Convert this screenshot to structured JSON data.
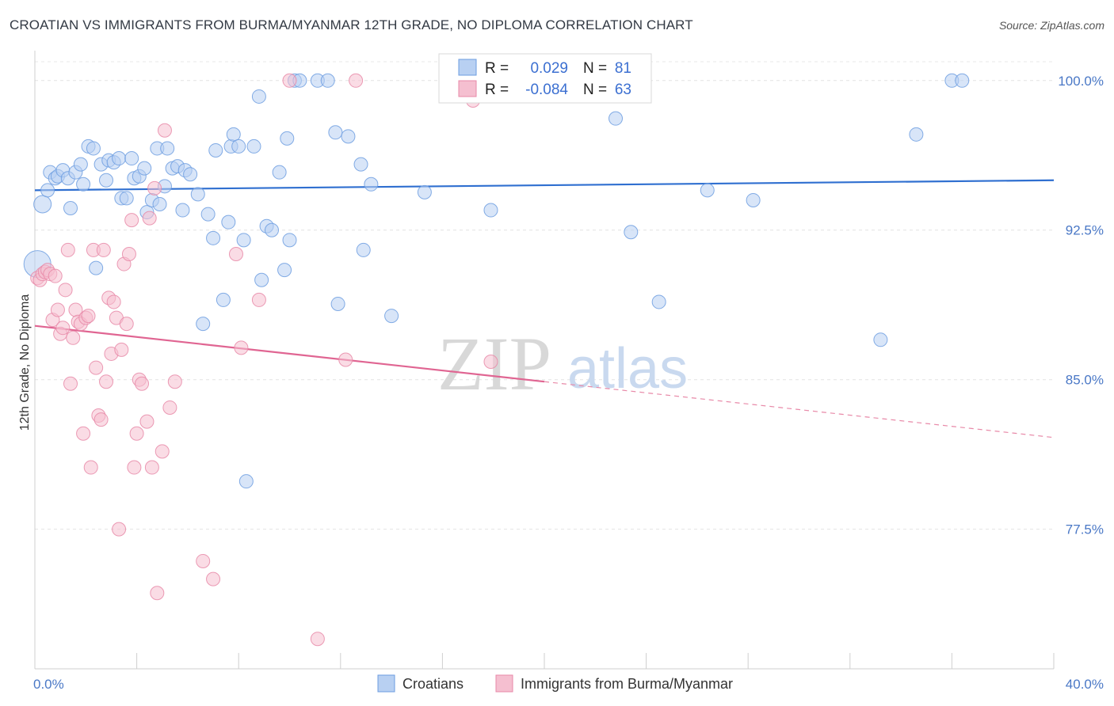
{
  "chart_data": {
    "type": "scatter",
    "title": "CROATIAN VS IMMIGRANTS FROM BURMA/MYANMAR 12TH GRADE, NO DIPLOMA CORRELATION CHART",
    "source": "Source: ZipAtlas.com",
    "xlabel": "",
    "ylabel": "12th Grade, No Diploma",
    "xlim": [
      0,
      40
    ],
    "ylim": [
      70.5,
      101.5
    ],
    "x_tick_labels": [
      "0.0%",
      "40.0%"
    ],
    "y_ticks": [
      100.0,
      92.5,
      85.0,
      77.5
    ],
    "y_tick_labels": [
      "100.0%",
      "92.5%",
      "85.0%",
      "77.5%"
    ],
    "grid": "horizontal dashed",
    "legend_position": "bottom-center",
    "watermark": {
      "part1": "ZIP",
      "part2": "atlas"
    },
    "stats": {
      "r_label": "R =",
      "n_label": "N =",
      "rows": [
        {
          "r": "0.029",
          "n": "81"
        },
        {
          "r": "-0.084",
          "n": "63"
        }
      ]
    },
    "series": [
      {
        "name": "Croatians",
        "color": "#6d9de0",
        "fill": "#b8d0f2",
        "trend": {
          "x": [
            0,
            40
          ],
          "y": [
            94.5,
            95.0
          ]
        },
        "points": [
          [
            0.1,
            90.8
          ],
          [
            0.3,
            93.8
          ],
          [
            0.5,
            94.5
          ],
          [
            0.6,
            95.4
          ],
          [
            0.8,
            95.1
          ],
          [
            0.9,
            95.2
          ],
          [
            1.1,
            95.5
          ],
          [
            1.3,
            95.1
          ],
          [
            1.4,
            93.6
          ],
          [
            1.6,
            95.4
          ],
          [
            1.8,
            95.8
          ],
          [
            1.9,
            94.8
          ],
          [
            2.1,
            96.7
          ],
          [
            2.3,
            96.6
          ],
          [
            2.4,
            90.6
          ],
          [
            2.6,
            95.8
          ],
          [
            2.8,
            95.0
          ],
          [
            2.9,
            96.0
          ],
          [
            3.1,
            95.9
          ],
          [
            3.3,
            96.1
          ],
          [
            3.4,
            94.1
          ],
          [
            3.6,
            94.1
          ],
          [
            3.8,
            96.1
          ],
          [
            3.9,
            95.1
          ],
          [
            4.1,
            95.2
          ],
          [
            4.3,
            95.6
          ],
          [
            4.4,
            93.4
          ],
          [
            4.6,
            94.0
          ],
          [
            4.8,
            96.6
          ],
          [
            4.9,
            93.8
          ],
          [
            5.1,
            94.7
          ],
          [
            5.2,
            96.6
          ],
          [
            5.4,
            95.6
          ],
          [
            5.6,
            95.7
          ],
          [
            5.8,
            93.5
          ],
          [
            5.9,
            95.5
          ],
          [
            6.1,
            95.3
          ],
          [
            6.4,
            94.3
          ],
          [
            6.6,
            87.8
          ],
          [
            6.8,
            93.3
          ],
          [
            7.0,
            92.1
          ],
          [
            7.1,
            96.5
          ],
          [
            7.4,
            89.0
          ],
          [
            7.6,
            92.9
          ],
          [
            7.7,
            96.7
          ],
          [
            7.8,
            97.3
          ],
          [
            8.0,
            96.7
          ],
          [
            8.2,
            92.0
          ],
          [
            8.3,
            79.9
          ],
          [
            8.6,
            96.7
          ],
          [
            8.8,
            99.2
          ],
          [
            8.9,
            90.0
          ],
          [
            9.1,
            92.7
          ],
          [
            9.3,
            92.5
          ],
          [
            9.6,
            95.4
          ],
          [
            9.8,
            90.5
          ],
          [
            9.9,
            97.1
          ],
          [
            10.0,
            92.0
          ],
          [
            10.2,
            100.0
          ],
          [
            10.4,
            100.0
          ],
          [
            11.1,
            100.0
          ],
          [
            11.5,
            100.0
          ],
          [
            11.8,
            97.4
          ],
          [
            11.9,
            88.8
          ],
          [
            12.3,
            97.2
          ],
          [
            12.8,
            95.8
          ],
          [
            12.9,
            91.5
          ],
          [
            13.2,
            94.8
          ],
          [
            14.0,
            88.2
          ],
          [
            15.3,
            94.4
          ],
          [
            17.9,
            93.5
          ],
          [
            22.6,
            100.0
          ],
          [
            22.8,
            98.1
          ],
          [
            23.4,
            92.4
          ],
          [
            24.5,
            88.9
          ],
          [
            26.4,
            94.5
          ],
          [
            28.2,
            94.0
          ],
          [
            33.2,
            87.0
          ],
          [
            34.6,
            97.3
          ],
          [
            36.0,
            100.0
          ],
          [
            36.4,
            100.0
          ]
        ]
      },
      {
        "name": "Immigrants from Burma/Myanmar",
        "color": "#e889a8",
        "fill": "#f5bfd0",
        "trend": {
          "x": [
            0,
            20
          ],
          "y": [
            87.7,
            84.9
          ]
        },
        "trend_ext": {
          "x": [
            20,
            40
          ],
          "y": [
            84.9,
            82.1
          ]
        },
        "points": [
          [
            0.1,
            90.1
          ],
          [
            0.2,
            90.0
          ],
          [
            0.3,
            90.3
          ],
          [
            0.4,
            90.4
          ],
          [
            0.5,
            90.5
          ],
          [
            0.6,
            90.3
          ],
          [
            0.7,
            88.0
          ],
          [
            0.8,
            90.2
          ],
          [
            0.9,
            88.5
          ],
          [
            1.0,
            87.3
          ],
          [
            1.1,
            87.6
          ],
          [
            1.2,
            89.5
          ],
          [
            1.3,
            91.5
          ],
          [
            1.4,
            84.8
          ],
          [
            1.5,
            87.1
          ],
          [
            1.6,
            88.5
          ],
          [
            1.7,
            87.9
          ],
          [
            1.8,
            87.8
          ],
          [
            1.9,
            82.3
          ],
          [
            2.0,
            88.1
          ],
          [
            2.1,
            88.2
          ],
          [
            2.2,
            80.6
          ],
          [
            2.3,
            91.5
          ],
          [
            2.4,
            85.6
          ],
          [
            2.5,
            83.2
          ],
          [
            2.6,
            83.0
          ],
          [
            2.7,
            91.5
          ],
          [
            2.8,
            84.9
          ],
          [
            2.9,
            89.1
          ],
          [
            3.0,
            86.3
          ],
          [
            3.1,
            88.9
          ],
          [
            3.2,
            88.1
          ],
          [
            3.3,
            77.5
          ],
          [
            3.4,
            86.5
          ],
          [
            3.5,
            90.8
          ],
          [
            3.6,
            87.8
          ],
          [
            3.7,
            91.3
          ],
          [
            3.8,
            93.0
          ],
          [
            3.9,
            80.6
          ],
          [
            4.0,
            82.3
          ],
          [
            4.1,
            85.0
          ],
          [
            4.2,
            84.8
          ],
          [
            4.4,
            82.9
          ],
          [
            4.5,
            93.1
          ],
          [
            4.6,
            80.6
          ],
          [
            4.7,
            94.6
          ],
          [
            4.8,
            74.3
          ],
          [
            5.0,
            81.4
          ],
          [
            5.1,
            97.5
          ],
          [
            5.3,
            83.6
          ],
          [
            5.5,
            84.9
          ],
          [
            6.6,
            75.9
          ],
          [
            7.0,
            75.0
          ],
          [
            7.9,
            91.3
          ],
          [
            8.1,
            86.6
          ],
          [
            8.8,
            89.0
          ],
          [
            10.0,
            100.0
          ],
          [
            11.1,
            72.0
          ],
          [
            12.2,
            86.0
          ],
          [
            12.6,
            100.0
          ],
          [
            17.0,
            100.0
          ],
          [
            17.2,
            99.0
          ],
          [
            17.9,
            85.9
          ]
        ]
      }
    ]
  }
}
